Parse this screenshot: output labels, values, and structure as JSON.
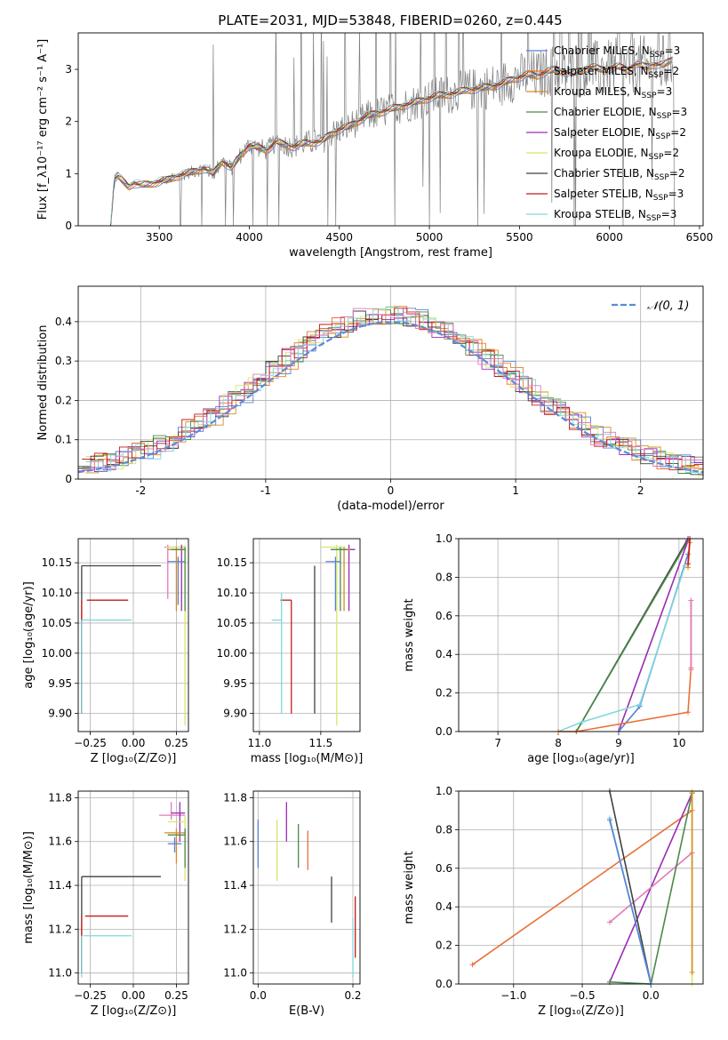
{
  "figure_title": "PLATE=2031, MJD=53848, FIBERID=0260, z=0.445",
  "colors": {
    "Chabrier MILES": "#5a7fd6",
    "Salpeter MILES": "#e8713a",
    "Kroupa MILES": "#d98a1e",
    "Chabrier ELODIE": "#4a8a4a",
    "Salpeter ELODIE": "#9a2bb5",
    "Kroupa ELODIE": "#d8e66a",
    "Chabrier STELIB": "#404040",
    "Salpeter STELIB": "#c41a1a",
    "Kroupa STELIB": "#7fd8dc",
    "extra_pink": "#e07ab8",
    "observed": "#808080",
    "normal": "#5b8bd8"
  },
  "chart_data": [
    {
      "id": "spectrum",
      "type": "line",
      "xlabel": "wavelength [Angstrom, rest frame]",
      "ylabel": "Flux [f_λ10⁻¹⁷ erg cm⁻² s⁻¹ A⁻¹]",
      "xlim": [
        3050,
        6520
      ],
      "ylim": [
        0,
        3.7
      ],
      "xticks": [
        3500,
        4000,
        4500,
        5000,
        5500,
        6000,
        6500
      ],
      "yticks": [
        0,
        1,
        2,
        3
      ],
      "legend_position": "top-right",
      "legend": [
        {
          "name": "Chabrier MILES",
          "nssp": "3"
        },
        {
          "name": "Salpeter MILES",
          "nssp": "2"
        },
        {
          "name": "Kroupa MILES",
          "nssp": "3"
        },
        {
          "name": "Chabrier ELODIE",
          "nssp": "3"
        },
        {
          "name": "Salpeter ELODIE",
          "nssp": "2"
        },
        {
          "name": "Kroupa ELODIE",
          "nssp": "2"
        },
        {
          "name": "Chabrier STELIB",
          "nssp": "2"
        },
        {
          "name": "Salpeter STELIB",
          "nssp": "3"
        },
        {
          "name": "Kroupa STELIB",
          "nssp": "3"
        }
      ],
      "model_x": [
        3230,
        3250,
        3270,
        3300,
        3330,
        3360,
        3400,
        3450,
        3500,
        3550,
        3600,
        3650,
        3700,
        3750,
        3800,
        3850,
        3900,
        3950,
        4000,
        4050,
        4100,
        4150,
        4200,
        4250,
        4300,
        4350,
        4400,
        4450,
        4500,
        4550,
        4600,
        4650,
        4700,
        4750,
        4800,
        4850,
        4900,
        4950,
        5000,
        5050,
        5100,
        5150,
        5200,
        5250,
        5300,
        5350,
        5400,
        5450,
        5500,
        5550,
        5600,
        5650,
        5700,
        5750,
        5800,
        5850,
        5900,
        5950,
        6000,
        6050,
        6100,
        6150,
        6200,
        6250,
        6300,
        6350
      ],
      "model_y": [
        0.0,
        0.9,
        0.95,
        0.85,
        0.75,
        0.82,
        0.78,
        0.8,
        0.85,
        0.88,
        0.95,
        1.0,
        1.05,
        1.1,
        1.0,
        1.25,
        1.1,
        1.35,
        1.55,
        1.5,
        1.45,
        1.62,
        1.55,
        1.52,
        1.58,
        1.6,
        1.62,
        1.75,
        1.85,
        1.9,
        2.0,
        2.1,
        2.15,
        2.2,
        2.25,
        2.3,
        2.35,
        2.4,
        2.45,
        2.5,
        2.52,
        2.55,
        2.6,
        2.62,
        2.65,
        2.68,
        2.72,
        2.8,
        2.85,
        2.9,
        2.88,
        2.95,
        3.0,
        2.95,
        2.92,
        3.0,
        3.05,
        3.0,
        3.02,
        3.05,
        3.0,
        3.1,
        3.05,
        3.1,
        3.08,
        3.2
      ]
    },
    {
      "id": "residuals",
      "type": "histogram",
      "xlabel": "(data-model)/error",
      "ylabel": "Normed distribution",
      "xlim": [
        -2.5,
        2.5
      ],
      "ylim": [
        0,
        0.49
      ],
      "xticks": [
        -2,
        -1,
        0,
        1,
        2
      ],
      "yticks": [
        0.0,
        0.1,
        0.2,
        0.3,
        0.4
      ],
      "grid": true,
      "legend": [
        {
          "name": "N(0,1)",
          "style": "dashed"
        }
      ],
      "legend_position": "top-right",
      "bin_width": 0.1
    },
    {
      "id": "age_vs_Z",
      "type": "errorbar",
      "xlabel": "Z [log₁₀(Z/Z⊙)]",
      "ylabel": "age  [log₁₀(age/yr)]",
      "xlim": [
        -0.32,
        0.32
      ],
      "ylim": [
        9.87,
        10.19
      ],
      "xticks": [
        -0.25,
        0.0,
        0.25
      ],
      "xticklabels": [
        "−0.25",
        "0.00",
        "0.25"
      ],
      "yticks": [
        9.9,
        9.95,
        10.0,
        10.05,
        10.1,
        10.15
      ],
      "yticklabels": [
        "9.90",
        "9.95",
        "10.00",
        "10.05",
        "10.10",
        "10.15"
      ],
      "points": [
        {
          "series": "Chabrier STELIB",
          "x": -0.3,
          "y": 10.145,
          "xlo": -0.3,
          "xhi": 0.16,
          "ylo": 9.9,
          "yhi": 10.145
        },
        {
          "series": "Salpeter STELIB",
          "x": -0.3,
          "y": 10.088,
          "xlo": -0.27,
          "xhi": -0.03,
          "ylo": 9.9,
          "yhi": 10.088
        },
        {
          "series": "Kroupa STELIB",
          "x": -0.3,
          "y": 10.055,
          "xlo": -0.3,
          "xhi": -0.01,
          "ylo": 9.9,
          "yhi": 10.055
        },
        {
          "series": "extra_pink",
          "x": 0.2,
          "y": 10.176,
          "xlo": 0.18,
          "xhi": 0.3,
          "ylo": 10.09,
          "yhi": 10.18
        },
        {
          "series": "Kroupa ELODIE",
          "x": 0.3,
          "y": 10.176,
          "xlo": 0.19,
          "xhi": 0.3,
          "ylo": 9.88,
          "yhi": 10.18
        },
        {
          "series": "Salpeter ELODIE",
          "x": 0.28,
          "y": 10.172,
          "xlo": 0.22,
          "xhi": 0.3,
          "ylo": 10.07,
          "yhi": 10.18
        },
        {
          "series": "Chabrier MILES",
          "x": 0.26,
          "y": 10.152,
          "xlo": 0.2,
          "xhi": 0.3,
          "ylo": 10.08,
          "yhi": 10.16
        },
        {
          "series": "Kroupa MILES",
          "x": 0.25,
          "y": 10.172,
          "xlo": 0.2,
          "xhi": 0.3,
          "ylo": 10.07,
          "yhi": 10.176
        },
        {
          "series": "Chabrier ELODIE",
          "x": 0.3,
          "y": 10.172,
          "xlo": 0.22,
          "xhi": 0.3,
          "ylo": 10.07,
          "yhi": 10.176
        }
      ]
    },
    {
      "id": "age_vs_mass",
      "type": "errorbar",
      "xlabel": "mass [log₁₀(M/M⊙)]",
      "ylabel": "",
      "xlim": [
        10.95,
        11.82
      ],
      "ylim": [
        9.87,
        10.19
      ],
      "xticks": [
        11.0,
        11.5
      ],
      "xticklabels": [
        "11.0",
        "11.5"
      ],
      "yticks": [
        9.9,
        9.95,
        10.0,
        10.05,
        10.1,
        10.15
      ],
      "yticklabels": [
        "9.90",
        "9.95",
        "10.00",
        "10.05",
        "10.10",
        "10.15"
      ],
      "points": [
        {
          "series": "Chabrier STELIB",
          "x": 11.45,
          "y": 10.145,
          "xlo": 11.45,
          "xhi": 11.45,
          "ylo": 9.9,
          "yhi": 10.145
        },
        {
          "series": "Salpeter STELIB",
          "x": 11.26,
          "y": 10.088,
          "xlo": 11.17,
          "xhi": 11.26,
          "ylo": 9.9,
          "yhi": 10.088
        },
        {
          "series": "Kroupa STELIB",
          "x": 11.18,
          "y": 10.055,
          "xlo": 11.1,
          "xhi": 11.18,
          "ylo": 9.9,
          "yhi": 10.1
        },
        {
          "series": "Kroupa ELODIE",
          "x": 11.63,
          "y": 10.176,
          "xlo": 11.5,
          "xhi": 11.7,
          "ylo": 9.88,
          "yhi": 10.18
        },
        {
          "series": "Salpeter ELODIE",
          "x": 11.73,
          "y": 10.172,
          "xlo": 11.6,
          "xhi": 11.78,
          "ylo": 10.07,
          "yhi": 10.18
        },
        {
          "series": "Chabrier MILES",
          "x": 11.62,
          "y": 10.152,
          "xlo": 11.54,
          "xhi": 11.66,
          "ylo": 10.07,
          "yhi": 10.16
        },
        {
          "series": "Kroupa MILES",
          "x": 11.69,
          "y": 10.172,
          "xlo": 11.6,
          "xhi": 11.74,
          "ylo": 10.07,
          "yhi": 10.176
        },
        {
          "series": "Chabrier ELODIE",
          "x": 11.66,
          "y": 10.172,
          "xlo": 11.58,
          "xhi": 11.72,
          "ylo": 10.07,
          "yhi": 10.176
        }
      ]
    },
    {
      "id": "massweight_vs_age",
      "type": "line",
      "xlabel": "age  [log₁₀(age/yr)]",
      "ylabel": "mass weight",
      "xlim": [
        6.35,
        10.4
      ],
      "ylim": [
        0,
        1
      ],
      "xticks": [
        7,
        8,
        9,
        10
      ],
      "yticks": [
        0.0,
        0.2,
        0.4,
        0.6,
        0.8,
        1.0
      ],
      "yticklabels": [
        "0.0",
        "0.2",
        "0.4",
        "0.6",
        "0.8",
        "1.0"
      ],
      "grid": true,
      "series": [
        {
          "name": "Chabrier STELIB",
          "x": [
            8.3,
            10.15
          ],
          "y": [
            0.0,
            1.0
          ]
        },
        {
          "name": "Chabrier ELODIE",
          "x": [
            8.3,
            10.15
          ],
          "y": [
            0.0,
            0.99
          ]
        },
        {
          "name": "Salpeter ELODIE",
          "x": [
            9.0,
            10.15
          ],
          "y": [
            0.0,
            0.99
          ]
        },
        {
          "name": "Chabrier MILES",
          "x": [
            9.0,
            9.35,
            10.15
          ],
          "y": [
            0.0,
            0.13,
            0.92
          ]
        },
        {
          "name": "Kroupa STELIB",
          "x": [
            8.0,
            8.4,
            9.35,
            10.1
          ],
          "y": [
            0.0,
            0.05,
            0.14,
            0.86
          ]
        },
        {
          "name": "Salpeter MILES",
          "x": [
            8.0,
            8.3,
            10.15,
            10.2,
            10.2
          ],
          "y": [
            0.0,
            0.0,
            0.1,
            0.33,
            0.68
          ]
        },
        {
          "name": "Kroupa MILES",
          "x": [
            10.15,
            10.18
          ],
          "y": [
            0.85,
            0.98
          ]
        },
        {
          "name": "Salpeter STELIB",
          "x": [
            10.15,
            10.18
          ],
          "y": [
            0.87,
            1.0
          ]
        },
        {
          "name": "extra_pink",
          "x": [
            10.2,
            10.2
          ],
          "y": [
            0.32,
            0.68
          ]
        }
      ]
    },
    {
      "id": "mass_vs_Z",
      "type": "errorbar",
      "xlabel": "Z [log₁₀(Z/Z⊙)]",
      "ylabel": "mass [log₁₀(M/M⊙)]",
      "xlim": [
        -0.32,
        0.32
      ],
      "ylim": [
        10.95,
        11.83
      ],
      "xticks": [
        -0.25,
        0.0,
        0.25
      ],
      "xticklabels": [
        "−0.25",
        "0.00",
        "0.25"
      ],
      "yticks": [
        11.0,
        11.2,
        11.4,
        11.6,
        11.8
      ],
      "yticklabels": [
        "11.0",
        "11.2",
        "11.4",
        "11.6",
        "11.8"
      ],
      "points": [
        {
          "series": "Chabrier STELIB",
          "x": -0.3,
          "y": 11.44,
          "xlo": -0.3,
          "xhi": 0.16,
          "ylo": 11.0,
          "yhi": 11.44
        },
        {
          "series": "Salpeter STELIB",
          "x": -0.3,
          "y": 11.26,
          "xlo": -0.28,
          "xhi": -0.03,
          "ylo": 11.0,
          "yhi": 11.26
        },
        {
          "series": "Kroupa STELIB",
          "x": -0.3,
          "y": 11.17,
          "xlo": -0.29,
          "xhi": -0.01,
          "ylo": 10.98,
          "yhi": 11.17
        },
        {
          "series": "extra_pink",
          "x": 0.22,
          "y": 11.72,
          "xlo": 0.15,
          "xhi": 0.3,
          "ylo": 11.7,
          "yhi": 11.78
        },
        {
          "series": "Salpeter ELODIE",
          "x": 0.27,
          "y": 11.73,
          "xlo": 0.22,
          "xhi": 0.3,
          "ylo": 11.6,
          "yhi": 11.78
        },
        {
          "series": "Kroupa ELODIE",
          "x": 0.3,
          "y": 11.69,
          "xlo": 0.2,
          "xhi": 0.3,
          "ylo": 11.42,
          "yhi": 11.72
        },
        {
          "series": "Kroupa MILES",
          "x": 0.25,
          "y": 11.64,
          "xlo": 0.18,
          "xhi": 0.3,
          "ylo": 11.5,
          "yhi": 11.66
        },
        {
          "series": "Chabrier ELODIE",
          "x": 0.3,
          "y": 11.63,
          "xlo": 0.2,
          "xhi": 0.3,
          "ylo": 11.48,
          "yhi": 11.66
        },
        {
          "series": "Chabrier MILES",
          "x": 0.24,
          "y": 11.59,
          "xlo": 0.2,
          "xhi": 0.28,
          "ylo": 11.55,
          "yhi": 11.62
        }
      ]
    },
    {
      "id": "mass_vs_ebv",
      "type": "errorbar",
      "xlabel": "E(B-V)",
      "ylabel": "",
      "xlim": [
        -0.01,
        0.215
      ],
      "ylim": [
        10.95,
        11.83
      ],
      "xticks": [
        0.0,
        0.2
      ],
      "xticklabels": [
        "0.0",
        "0.2"
      ],
      "yticks": [
        11.0,
        11.2,
        11.4,
        11.6,
        11.8
      ],
      "yticklabels": [
        "11.0",
        "11.2",
        "11.4",
        "11.6",
        "11.8"
      ],
      "points": [
        {
          "series": "Chabrier MILES",
          "x": 0.0,
          "y": 11.56,
          "ylo": 11.48,
          "yhi": 11.7
        },
        {
          "series": "Kroupa ELODIE",
          "x": 0.04,
          "y": 11.56,
          "ylo": 11.42,
          "yhi": 11.7
        },
        {
          "series": "Salpeter ELODIE",
          "x": 0.06,
          "y": 11.69,
          "ylo": 11.6,
          "yhi": 11.78
        },
        {
          "series": "Chabrier ELODIE",
          "x": 0.085,
          "y": 11.58,
          "ylo": 11.48,
          "yhi": 11.68
        },
        {
          "series": "Salpeter MILES",
          "x": 0.105,
          "y": 11.55,
          "ylo": 11.47,
          "yhi": 11.65
        },
        {
          "series": "Chabrier STELIB",
          "x": 0.155,
          "y": 11.33,
          "ylo": 11.23,
          "yhi": 11.44
        },
        {
          "series": "Kroupa STELIB",
          "x": 0.2,
          "y": 11.12,
          "ylo": 10.98,
          "yhi": 11.25
        },
        {
          "series": "Salpeter STELIB",
          "x": 0.205,
          "y": 11.2,
          "ylo": 11.07,
          "yhi": 11.35
        }
      ]
    },
    {
      "id": "massweight_vs_Z",
      "type": "line",
      "xlabel": "Z [log₁₀(Z/Z⊙)]",
      "ylabel": "mass weight",
      "xlim": [
        -1.4,
        0.38
      ],
      "ylim": [
        0,
        1
      ],
      "xticks": [
        -1.0,
        -0.5,
        0.0
      ],
      "xticklabels": [
        "−1.0",
        "−0.5",
        "0.0"
      ],
      "yticks": [
        0.0,
        0.2,
        0.4,
        0.6,
        0.8,
        1.0
      ],
      "yticklabels": [
        "0.0",
        "0.2",
        "0.4",
        "0.6",
        "0.8",
        "1.0"
      ],
      "grid": true,
      "series": [
        {
          "name": "Salpeter MILES",
          "x": [
            -1.3,
            0.3
          ],
          "y": [
            0.1,
            0.9
          ]
        },
        {
          "name": "Salpeter ELODIE",
          "x": [
            -0.3,
            0.3
          ],
          "y": [
            0.01,
            0.99
          ]
        },
        {
          "name": "extra_pink",
          "x": [
            -0.3,
            0.3
          ],
          "y": [
            0.32,
            0.68
          ]
        },
        {
          "name": "Chabrier ELODIE",
          "x": [
            -0.3,
            0.0,
            0.3
          ],
          "y": [
            0.01,
            0.0,
            0.99
          ]
        },
        {
          "name": "Chabrier STELIB",
          "x": [
            -0.3,
            0.0
          ],
          "y": [
            1.0,
            0.0
          ]
        },
        {
          "name": "Kroupa STELIB",
          "x": [
            -0.3,
            0.0
          ],
          "y": [
            0.86,
            0.0
          ]
        },
        {
          "name": "Chabrier MILES",
          "x": [
            -0.3,
            0.0
          ],
          "y": [
            0.85,
            0.0
          ]
        },
        {
          "name": "Kroupa ELODIE",
          "x": [
            0.3,
            0.3
          ],
          "y": [
            0.0,
            1.0
          ]
        },
        {
          "name": "Kroupa MILES",
          "x": [
            0.3,
            0.3
          ],
          "y": [
            0.06,
            0.99
          ]
        }
      ]
    }
  ]
}
